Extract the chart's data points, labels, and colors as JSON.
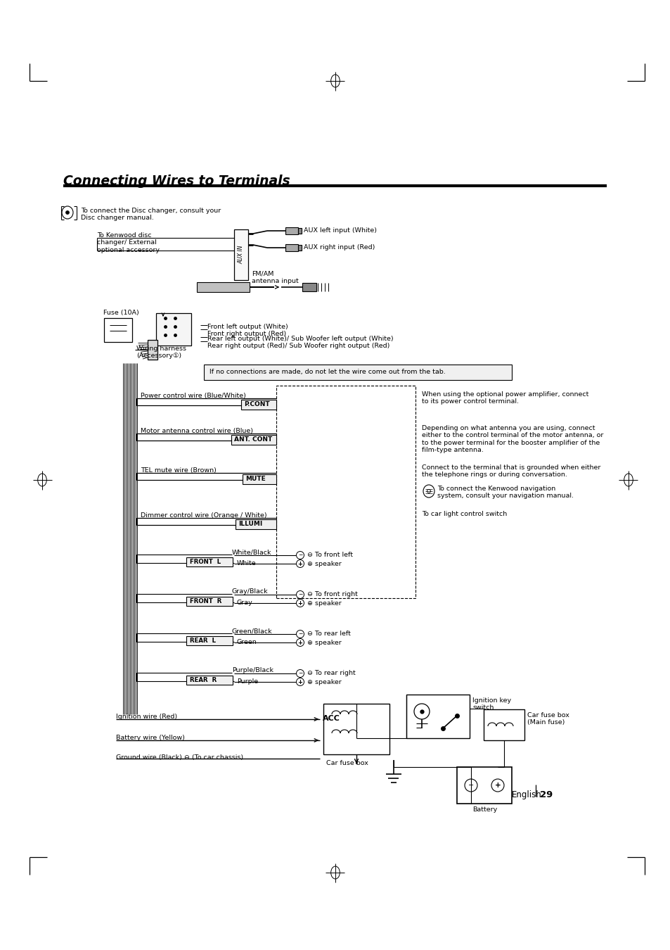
{
  "title": "Connecting Wires to Terminals",
  "bg_color": "#ffffff",
  "note_text": "To connect the Disc changer, consult your\nDisc changer manual.",
  "aux_left": "AUX left input (White)",
  "aux_right": "AUX right input (Red)",
  "fmam_label": "FM/AM\nantenna input",
  "fuse_label": "Fuse (10A)",
  "kenwood_label": "To Kenwood disc\nchanger/ External\noptional accessory",
  "wiring_label": "Wiring harness\n(Accessory①)",
  "front_out": "Front left output (White)\nFront right output (Red)",
  "rear_out": "Rear left output (White)/ Sub Woofer left output (White)\nRear right output (Red)/ Sub Woofer right output (Red)",
  "tab_note": "If no connections are made, do not let the wire come out from the tab.",
  "power_wire": "Power control wire (Blue/White)",
  "power_terminal": "P.CONT",
  "power_desc": "When using the optional power amplifier, connect\nto its power control terminal.",
  "motor_wire": "Motor antenna control wire (Blue)",
  "motor_terminal": "ANT. CONT",
  "motor_desc": "Depending on what antenna you are using, connect\neither to the control terminal of the motor antenna, or\nto the power terminal for the booster amplifier of the\nfilm-type antenna.",
  "tel_wire": "TEL mute wire (Brown)",
  "tel_terminal": "MUTE",
  "tel_desc": "Connect to the terminal that is grounded when either\nthe telephone rings or during conversation.",
  "nav_note": "To connect the Kenwood navigation\nsystem, consult your navigation manual.",
  "dimmer_wire": "Dimmer control wire (Orange / White)",
  "dimmer_terminal": "ILLUMI",
  "dimmer_desc": "To car light control switch",
  "front_l_label": "FRONT  L",
  "front_r_label": "FRONT  R",
  "rear_l_label": "REAR  L",
  "rear_r_label": "REAR  R",
  "sp_color_labels": [
    "White/Black",
    "Gray/Black",
    "Green/Black",
    "Purple/Black"
  ],
  "sp_wire_labels": [
    "White",
    "Gray",
    "Green",
    "Purple"
  ],
  "sp_neg_desc": [
    "To front left",
    "To front right",
    "To rear left",
    "To rear right"
  ],
  "sp_pos_desc": [
    "speaker",
    "speaker",
    "speaker",
    "speaker"
  ],
  "ign_wire": "Ignition wire (Red)",
  "bat_wire": "Battery wire (Yellow)",
  "gnd_wire": "Ground wire (Black) ⊖ (To car chassis)",
  "acc_label": "ACC",
  "car_fuse_label": "Car fuse box",
  "ign_switch_label": "Ignition key\nswitch",
  "car_fuse_main_label": "Car fuse box\n(Main fuse)",
  "battery_label": "Battery",
  "english_label": "English",
  "page_num": "29"
}
